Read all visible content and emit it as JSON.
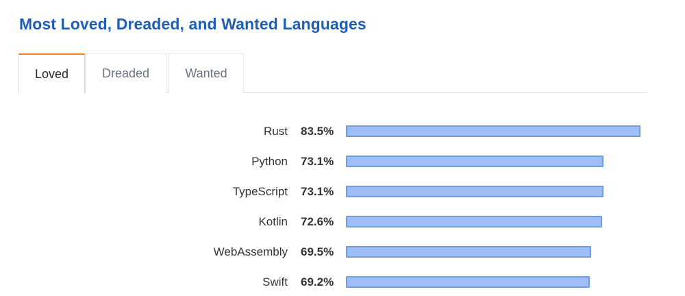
{
  "header": {
    "title": "Most Loved, Dreaded, and Wanted Languages"
  },
  "tabs": [
    {
      "label": "Loved",
      "active": true
    },
    {
      "label": "Dreaded",
      "active": false
    },
    {
      "label": "Wanted",
      "active": false
    }
  ],
  "colors": {
    "title": "#1f5db7",
    "active_tab_accent": "#f48024",
    "bar_fill": "#9dbff5",
    "bar_border": "#6f9be4"
  },
  "chart_data": {
    "type": "bar",
    "orientation": "horizontal",
    "categories": [
      "Rust",
      "Python",
      "TypeScript",
      "Kotlin",
      "WebAssembly",
      "Swift"
    ],
    "values": [
      83.5,
      73.1,
      73.1,
      72.6,
      69.5,
      69.2
    ],
    "value_labels": [
      "83.5%",
      "73.1%",
      "73.1%",
      "72.6%",
      "69.5%",
      "69.2%"
    ],
    "unit": "%",
    "grid": false
  }
}
